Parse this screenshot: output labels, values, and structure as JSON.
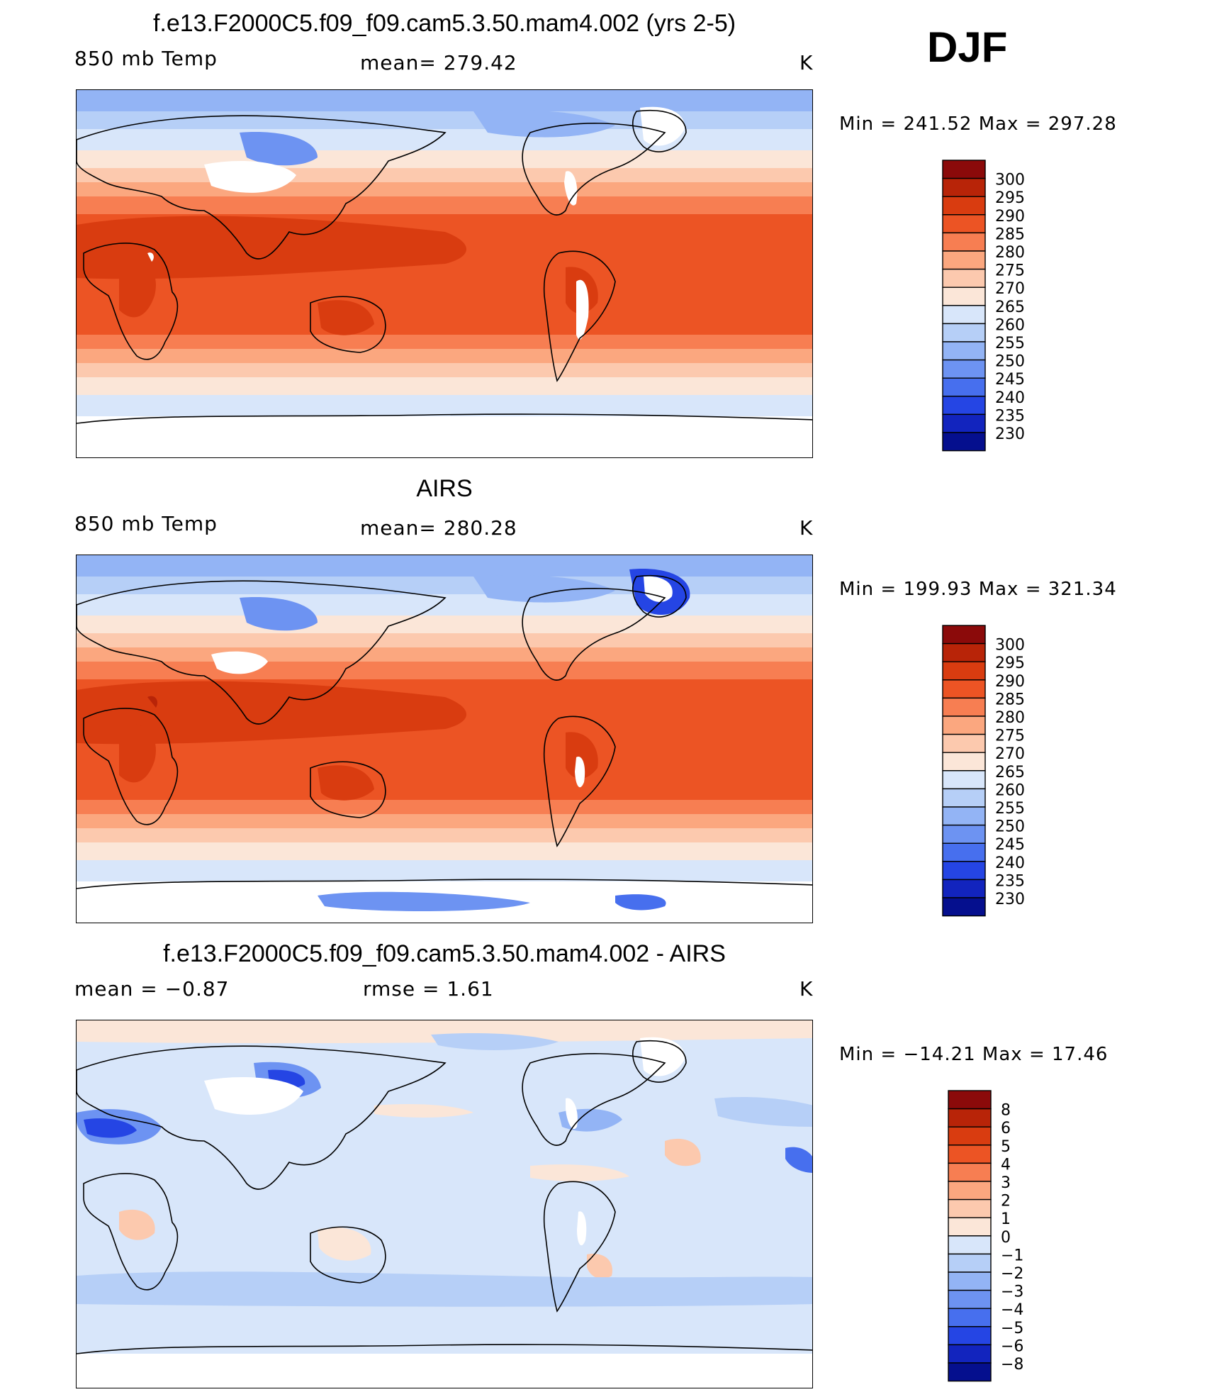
{
  "season": "DJF",
  "colors": {
    "warm": [
      "#FBE6D8",
      "#FCC9AE",
      "#FBA77F",
      "#F77E52",
      "#EC5424",
      "#D93C10",
      "#B82408",
      "#8B0A0A"
    ],
    "cool": [
      "#D8E6FA",
      "#B6CFF7",
      "#93B4F5",
      "#6D93F2",
      "#476FEE",
      "#2545E4",
      "#1224BE",
      "#050F8E"
    ],
    "white": "#FFFFFF"
  },
  "panels": [
    {
      "title": "f.e13.F2000C5.f09_f09.cam5.3.50.mam4.002 (yrs 2-5)",
      "left_label": "850 mb Temp",
      "center_label": "mean= 279.42",
      "right_label": "K",
      "minmax": "Min = 241.52 Max = 297.28",
      "variant": "model"
    },
    {
      "title": "AIRS",
      "left_label": "850 mb Temp",
      "center_label": "mean= 280.28",
      "right_label": "K",
      "minmax": "Min = 199.93 Max = 321.34",
      "variant": "obs"
    },
    {
      "title": "f.e13.F2000C5.f09_f09.cam5.3.50.mam4.002 - AIRS",
      "left_label": "mean =   −0.87",
      "center_label": "rmse =    1.61",
      "right_label": "K",
      "minmax": "Min = −14.21 Max =  17.46",
      "variant": "diff"
    }
  ],
  "chart_data": [
    {
      "type": "heatmap",
      "title": "f.e13.F2000C5.f09_f09.cam5.3.50.mam4.002 (yrs 2-5)",
      "variable": "850 mb Temp",
      "units": "K",
      "mean": 279.42,
      "min": 241.52,
      "max": 297.28,
      "colorbar_levels": [
        "300",
        "295",
        "290",
        "285",
        "280",
        "275",
        "270",
        "265",
        "260",
        "255",
        "250",
        "245",
        "240",
        "235",
        "230"
      ]
    },
    {
      "type": "heatmap",
      "title": "AIRS",
      "variable": "850 mb Temp",
      "units": "K",
      "mean": 280.28,
      "min": 199.93,
      "max": 321.34,
      "colorbar_levels": [
        "300",
        "295",
        "290",
        "285",
        "280",
        "275",
        "270",
        "265",
        "260",
        "255",
        "250",
        "245",
        "240",
        "235",
        "230"
      ]
    },
    {
      "type": "heatmap",
      "title": "f.e13.F2000C5.f09_f09.cam5.3.50.mam4.002 - AIRS",
      "units": "K",
      "mean": -0.87,
      "rmse": 1.61,
      "min": -14.21,
      "max": 17.46,
      "colorbar_levels": [
        "8",
        "6",
        "5",
        "4",
        "3",
        "2",
        "1",
        "0",
        "−1",
        "−2",
        "−3",
        "−4",
        "−5",
        "−6",
        "−8"
      ]
    }
  ]
}
